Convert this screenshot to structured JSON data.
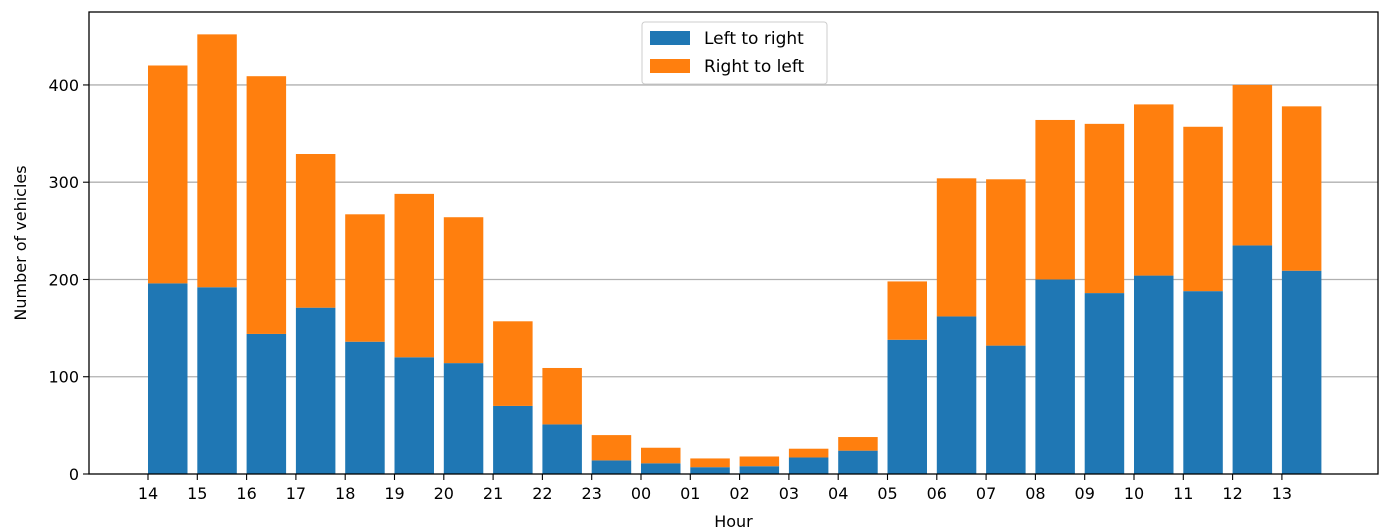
{
  "chart_data": {
    "type": "bar",
    "stacked": true,
    "xlabel": "Hour",
    "ylabel": "Number of vehicles",
    "ylim": [
      0,
      475
    ],
    "yticks": [
      0,
      100,
      200,
      300,
      400
    ],
    "grid": "horizontal",
    "legend_position": "top-center",
    "categories": [
      "14",
      "15",
      "16",
      "17",
      "18",
      "19",
      "20",
      "21",
      "22",
      "23",
      "00",
      "01",
      "02",
      "03",
      "04",
      "05",
      "06",
      "07",
      "08",
      "09",
      "10",
      "11",
      "12",
      "13"
    ],
    "series": [
      {
        "name": "Left to right",
        "color": "#1f77b4",
        "values": [
          196,
          192,
          144,
          171,
          136,
          120,
          114,
          70,
          51,
          14,
          11,
          7,
          8,
          17,
          24,
          138,
          162,
          132,
          200,
          186,
          204,
          188,
          235,
          209
        ]
      },
      {
        "name": "Right to left",
        "color": "#ff7f0e",
        "values": [
          224,
          260,
          265,
          158,
          131,
          168,
          150,
          87,
          58,
          26,
          16,
          9,
          10,
          9,
          14,
          60,
          142,
          171,
          164,
          174,
          176,
          169,
          165,
          169
        ]
      }
    ]
  }
}
